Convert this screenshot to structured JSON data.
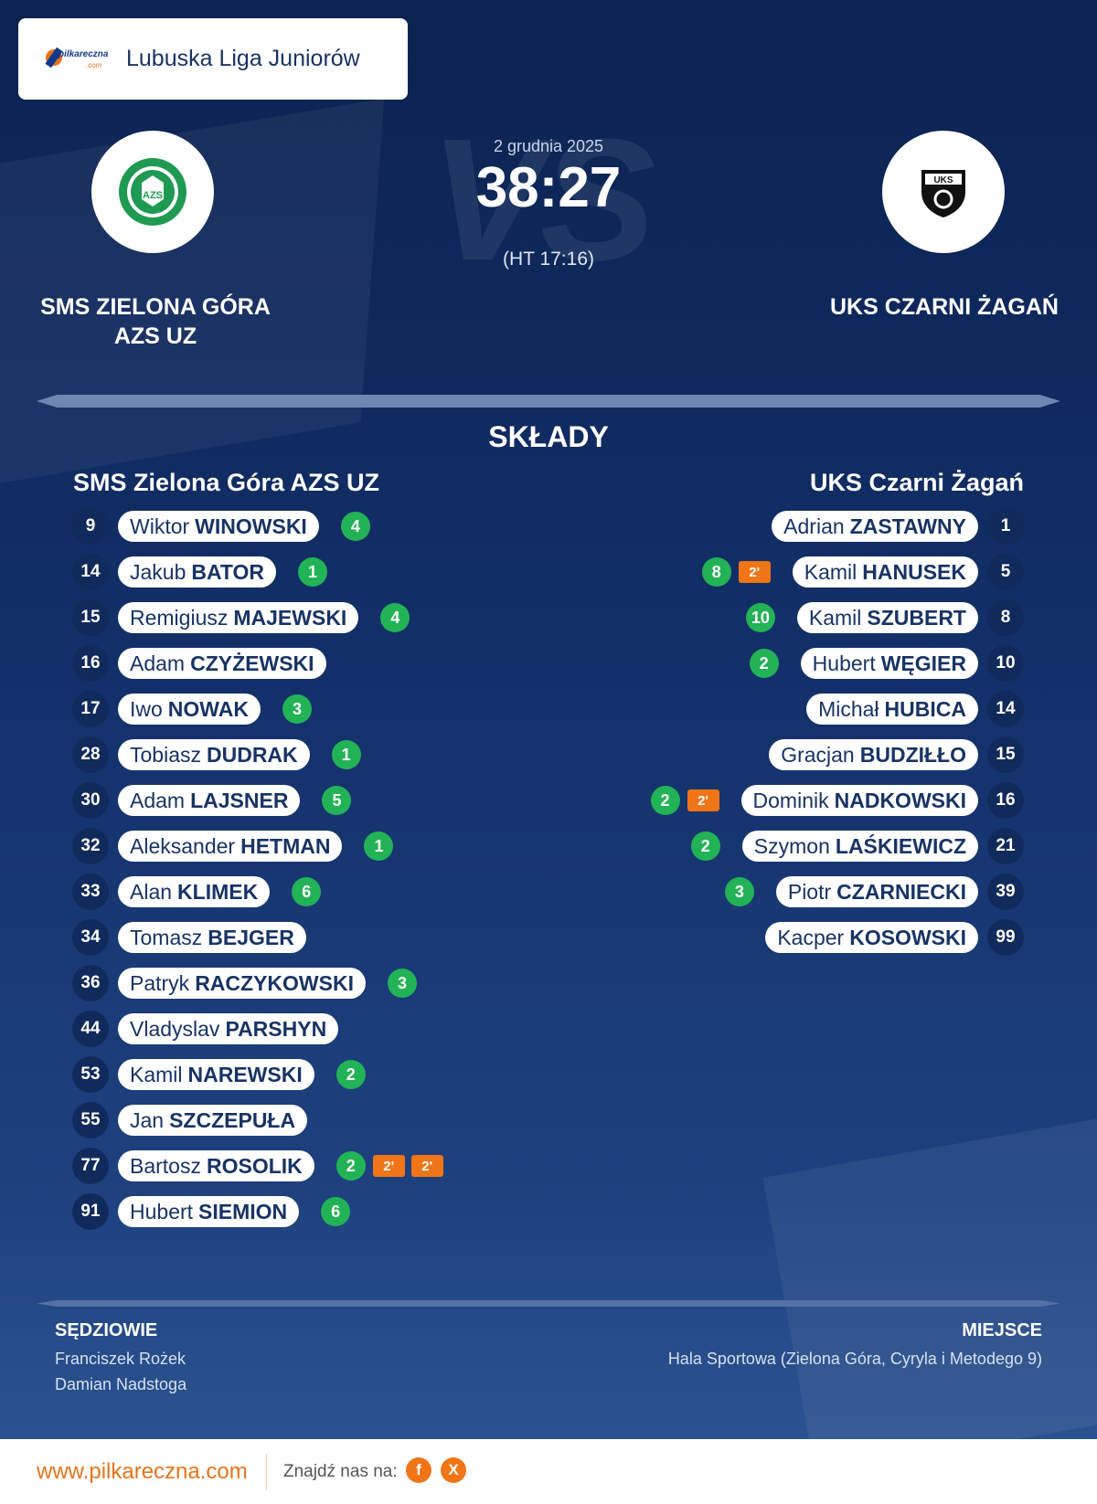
{
  "header": {
    "league_name": "Lubuska Liga Juniorów",
    "logo_text": "pilkareczna",
    "logo_sub": ".com"
  },
  "match": {
    "date": "2 grudnia 2025",
    "score": "38:27",
    "halftime": "(HT 17:16)",
    "vs": "VS"
  },
  "home": {
    "name_upper_line1": "SMS ZIELONA GÓRA",
    "name_upper_line2": "AZS UZ",
    "name": "SMS Zielona Góra AZS UZ",
    "logo_text": "AZS"
  },
  "away": {
    "name_upper": "UKS CZARNI ŻAGAŃ",
    "name": "UKS Czarni Żagań",
    "logo_text": "UKS"
  },
  "section_title": "SKŁADY",
  "home_players": [
    {
      "number": "9",
      "first": "Wiktor",
      "last": "WINOWSKI",
      "goals": "4",
      "susp": []
    },
    {
      "number": "14",
      "first": "Jakub",
      "last": "BATOR",
      "goals": "1",
      "susp": []
    },
    {
      "number": "15",
      "first": "Remigiusz",
      "last": "MAJEWSKI",
      "goals": "4",
      "susp": []
    },
    {
      "number": "16",
      "first": "Adam",
      "last": "CZYŻEWSKI",
      "goals": "",
      "susp": []
    },
    {
      "number": "17",
      "first": "Iwo",
      "last": "NOWAK",
      "goals": "3",
      "susp": []
    },
    {
      "number": "28",
      "first": "Tobiasz",
      "last": "DUDRAK",
      "goals": "1",
      "susp": []
    },
    {
      "number": "30",
      "first": "Adam",
      "last": "LAJSNER",
      "goals": "5",
      "susp": []
    },
    {
      "number": "32",
      "first": "Aleksander",
      "last": "HETMAN",
      "goals": "1",
      "susp": []
    },
    {
      "number": "33",
      "first": "Alan",
      "last": "KLIMEK",
      "goals": "6",
      "susp": []
    },
    {
      "number": "34",
      "first": "Tomasz",
      "last": "BEJGER",
      "goals": "",
      "susp": []
    },
    {
      "number": "36",
      "first": "Patryk",
      "last": "RACZYKOWSKI",
      "goals": "3",
      "susp": []
    },
    {
      "number": "44",
      "first": "Vladyslav",
      "last": "PARSHYN",
      "goals": "",
      "susp": []
    },
    {
      "number": "53",
      "first": "Kamil",
      "last": "NAREWSKI",
      "goals": "2",
      "susp": []
    },
    {
      "number": "55",
      "first": "Jan",
      "last": "SZCZEPUŁA",
      "goals": "",
      "susp": []
    },
    {
      "number": "77",
      "first": "Bartosz",
      "last": "ROSOLIK",
      "goals": "2",
      "susp": [
        "2'",
        "2'"
      ]
    },
    {
      "number": "91",
      "first": "Hubert",
      "last": "SIEMION",
      "goals": "6",
      "susp": []
    }
  ],
  "away_players": [
    {
      "number": "1",
      "first": "Adrian",
      "last": "ZASTAWNY",
      "goals": "",
      "susp": []
    },
    {
      "number": "5",
      "first": "Kamil",
      "last": "HANUSEK",
      "goals": "8",
      "susp": [
        "2'"
      ]
    },
    {
      "number": "8",
      "first": "Kamil",
      "last": "SZUBERT",
      "goals": "10",
      "susp": []
    },
    {
      "number": "10",
      "first": "Hubert",
      "last": "WĘGIER",
      "goals": "2",
      "susp": []
    },
    {
      "number": "14",
      "first": "Michał",
      "last": "HUBICA",
      "goals": "",
      "susp": []
    },
    {
      "number": "15",
      "first": "Gracjan",
      "last": "BUDZIŁŁO",
      "goals": "",
      "susp": []
    },
    {
      "number": "16",
      "first": "Dominik",
      "last": "NADKOWSKI",
      "goals": "2",
      "susp": [
        "2'"
      ]
    },
    {
      "number": "21",
      "first": "Szymon",
      "last": "LAŚKIEWICZ",
      "goals": "2",
      "susp": []
    },
    {
      "number": "39",
      "first": "Piotr",
      "last": "CZARNIECKI",
      "goals": "3",
      "susp": []
    },
    {
      "number": "99",
      "first": "Kacper",
      "last": "KOSOWSKI",
      "goals": "",
      "susp": []
    }
  ],
  "referees": {
    "label": "SĘDZIOWIE",
    "names": [
      "Franciszek Rożek",
      "Damian Nadstoga"
    ]
  },
  "venue": {
    "label": "MIEJSCE",
    "text": "Hala Sportowa (Zielona Góra, Cyryla i Metodego 9)"
  },
  "footer": {
    "site": "www.pilkareczna.com",
    "find_label": "Znajdź nas na:",
    "social": [
      {
        "icon": "facebook-icon",
        "glyph": "f"
      },
      {
        "icon": "x-icon",
        "glyph": "X"
      }
    ]
  },
  "colors": {
    "background": "#13306a",
    "goal_badge": "#22b356",
    "suspension_badge": "#f07517",
    "brand_orange": "#e8731a"
  }
}
